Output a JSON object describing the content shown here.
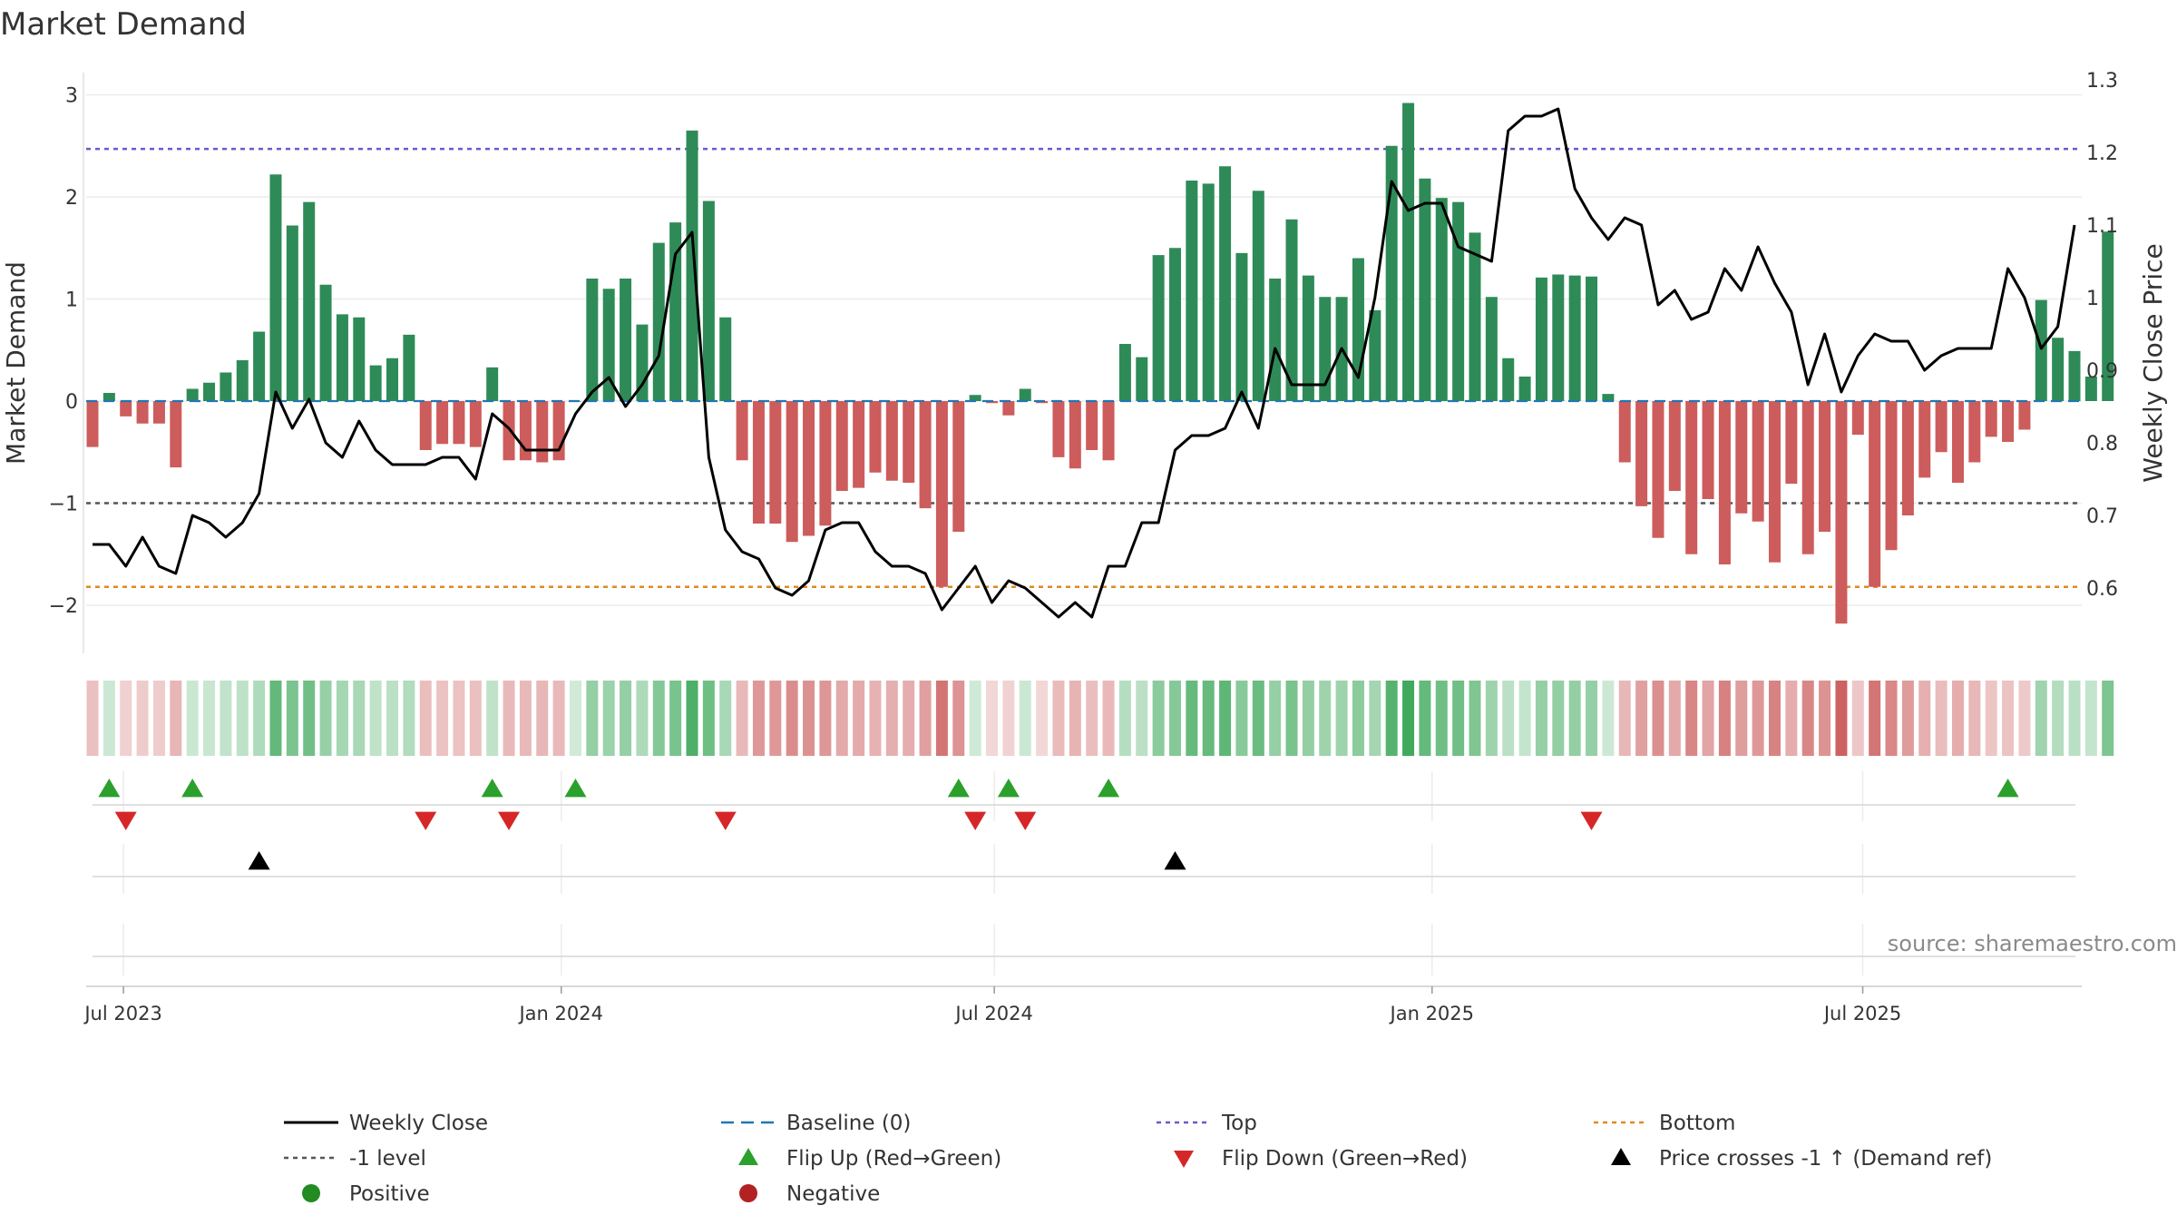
{
  "chart_data": {
    "type": "bar",
    "title": "Market Demand",
    "ylabel": "Market Demand",
    "y2label": "Weekly Close Price",
    "ylim": [
      -2.45,
      3.2
    ],
    "y2lim": [
      0.5,
      1.3
    ],
    "yticks": [
      3,
      2,
      1,
      0,
      -1,
      -2
    ],
    "ytick_labels": [
      "3",
      "2",
      "1",
      "0",
      "−1",
      "−2"
    ],
    "y2ticks": [
      1.3,
      1.2,
      1.1,
      1.0,
      0.9,
      0.8,
      0.7,
      0.6
    ],
    "y2tick_labels": [
      "1.3",
      "1.2",
      "1.1",
      "1",
      "0.9",
      "0.8",
      "0.7",
      "0.6"
    ],
    "levels": {
      "top": 2.47,
      "minus_one": -1.0,
      "bottom": -1.82
    },
    "start_date": "2023-06-18",
    "weeks": 120,
    "x_tick_labels": [
      {
        "label": "Jul 2023",
        "date": "2023-07-01"
      },
      {
        "label": "Jan 2024",
        "date": "2024-01-01"
      },
      {
        "label": "Jul 2024",
        "date": "2024-07-01"
      },
      {
        "label": "Jan 2025",
        "date": "2025-01-01"
      },
      {
        "label": "Jul 2025",
        "date": "2025-07-01"
      }
    ],
    "demand": [
      -0.45,
      0.08,
      -0.15,
      -0.22,
      -0.22,
      -0.65,
      0.12,
      0.18,
      0.28,
      0.4,
      0.68,
      2.22,
      1.72,
      1.95,
      1.14,
      0.85,
      0.82,
      0.35,
      0.42,
      0.65,
      -0.48,
      -0.42,
      -0.42,
      -0.45,
      0.33,
      -0.58,
      -0.58,
      -0.6,
      -0.58,
      0.0,
      1.2,
      1.1,
      1.2,
      0.75,
      1.55,
      1.75,
      2.65,
      1.96,
      0.82,
      -0.58,
      -1.2,
      -1.2,
      -1.38,
      -1.32,
      -1.22,
      -0.88,
      -0.85,
      -0.7,
      -0.78,
      -0.8,
      -1.05,
      -1.82,
      -1.28,
      0.06,
      -0.02,
      -0.14,
      0.12,
      -0.02,
      -0.55,
      -0.66,
      -0.48,
      -0.58,
      0.56,
      0.43,
      1.43,
      1.5,
      2.16,
      2.13,
      2.3,
      1.45,
      2.06,
      1.2,
      1.78,
      1.23,
      1.02,
      1.02,
      1.4,
      0.89,
      2.5,
      2.92,
      2.18,
      1.99,
      1.95,
      1.65,
      1.02,
      0.42,
      0.24,
      1.21,
      1.24,
      1.23,
      1.22,
      0.07,
      -0.6,
      -1.03,
      -1.34,
      -0.88,
      -1.5,
      -0.96,
      -1.6,
      -1.1,
      -1.18,
      -1.58,
      -0.81,
      -1.5,
      -1.28,
      -2.18,
      -0.33,
      -1.82,
      -1.46,
      -1.12,
      -0.75,
      -0.5,
      -0.8,
      -0.6,
      -0.35,
      -0.4,
      -0.28,
      0.99,
      0.62,
      0.49,
      0.24,
      1.66
    ],
    "price": [
      0.66,
      0.66,
      0.63,
      0.67,
      0.63,
      0.62,
      0.7,
      0.69,
      0.67,
      0.69,
      0.73,
      0.87,
      0.82,
      0.86,
      0.8,
      0.78,
      0.83,
      0.79,
      0.77,
      0.77,
      0.77,
      0.78,
      0.78,
      0.75,
      0.84,
      0.82,
      0.79,
      0.79,
      0.79,
      0.84,
      0.87,
      0.89,
      0.85,
      0.88,
      0.92,
      1.06,
      1.09,
      0.78,
      0.68,
      0.65,
      0.64,
      0.6,
      0.59,
      0.61,
      0.68,
      0.69,
      0.69,
      0.65,
      0.63,
      0.63,
      0.62,
      0.57,
      0.6,
      0.63,
      0.58,
      0.61,
      0.6,
      0.58,
      0.56,
      0.58,
      0.56,
      0.63,
      0.63,
      0.69,
      0.69,
      0.79,
      0.81,
      0.81,
      0.82,
      0.87,
      0.82,
      0.93,
      0.88,
      0.88,
      0.88,
      0.93,
      0.89,
      1.0,
      1.16,
      1.12,
      1.13,
      1.13,
      1.07,
      1.06,
      1.05,
      1.23,
      1.25,
      1.25,
      1.26,
      1.15,
      1.11,
      1.08,
      1.11,
      1.1,
      0.99,
      1.01,
      0.97,
      0.98,
      1.04,
      1.01,
      1.07,
      1.02,
      0.98,
      0.88,
      0.95,
      0.87,
      0.92,
      0.95,
      0.94,
      0.94,
      0.9,
      0.92,
      0.93,
      0.93,
      0.93,
      1.04,
      1.0,
      0.93,
      0.96,
      1.1
    ],
    "flip_up_indices": [
      1,
      6,
      24,
      29,
      52,
      55,
      61,
      115
    ],
    "flip_down_indices": [
      2,
      20,
      25,
      38,
      53,
      56,
      90
    ],
    "price_cross_indices": [
      10,
      65
    ],
    "source": "source: sharemaestro.com",
    "legend": [
      {
        "label": "Weekly Close",
        "kind": "line",
        "color": "#000000"
      },
      {
        "label": "Baseline (0)",
        "kind": "dash",
        "color": "#1f77b4"
      },
      {
        "label": "Top",
        "kind": "dot",
        "color": "#6a5acd"
      },
      {
        "label": "Bottom",
        "kind": "dot",
        "color": "#e08a1e"
      },
      {
        "label": "-1 level",
        "kind": "dot",
        "color": "#555555"
      },
      {
        "label": "Flip Up (Red→Green)",
        "kind": "tri-up",
        "color": "#2ca02c"
      },
      {
        "label": "Flip Down (Green→Red)",
        "kind": "tri-down",
        "color": "#d62728"
      },
      {
        "label": "Price crosses -1 ↑ (Demand ref)",
        "kind": "tri-up",
        "color": "#000000"
      },
      {
        "label": "Positive",
        "kind": "circle",
        "color": "#228b22"
      },
      {
        "label": "Negative",
        "kind": "circle",
        "color": "#b22222"
      }
    ],
    "colors": {
      "positive_bar": "#2e8b57",
      "negative_bar": "#cd5c5c",
      "price_line": "#000000",
      "baseline": "#1f77b4",
      "top": "#6a5acd",
      "bottom": "#e08a1e",
      "minus_one": "#555555",
      "flip_up": "#2ca02c",
      "flip_down": "#d62728",
      "cross": "#000000"
    }
  }
}
